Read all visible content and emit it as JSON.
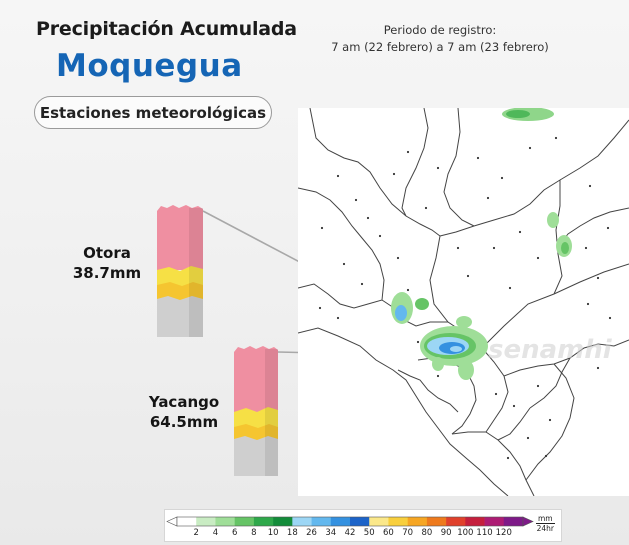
{
  "header": {
    "title": "Precipitación Acumulada",
    "region": "Moquegua",
    "badge": "Estaciones meteorológicas",
    "period_line1": "Periodo de registro:",
    "period_line2": "7 am (22 febrero) a 7 am  (23 febrero)"
  },
  "stations": [
    {
      "name": "Otora",
      "value": "38.7mm",
      "amount_mm": 38.7
    },
    {
      "name": "Yacango",
      "value": "64.5mm",
      "amount_mm": 64.5
    }
  ],
  "map": {
    "watermark": "senamhi"
  },
  "colorbar": {
    "ticks": [
      "2",
      "4",
      "6",
      "8",
      "10",
      "18",
      "26",
      "34",
      "42",
      "50",
      "60",
      "70",
      "80",
      "90",
      "100",
      "110",
      "120"
    ],
    "colors": [
      "#ffffff",
      "#c9ecc3",
      "#9fde98",
      "#66c466",
      "#2ea84a",
      "#138c3a",
      "#9cd6f5",
      "#63b8ee",
      "#3491e0",
      "#1c63c8",
      "#fbe88a",
      "#f8cf3d",
      "#f6a623",
      "#ee7a1d",
      "#e0412c",
      "#c51f3d",
      "#ad1c74",
      "#7e1a88"
    ],
    "unit_top": "mm",
    "unit_bottom": "24hr"
  },
  "bar_colors": {
    "pink": "#ef8fa1",
    "yellow": "#f6e045",
    "gray": "#cfcfcf"
  }
}
